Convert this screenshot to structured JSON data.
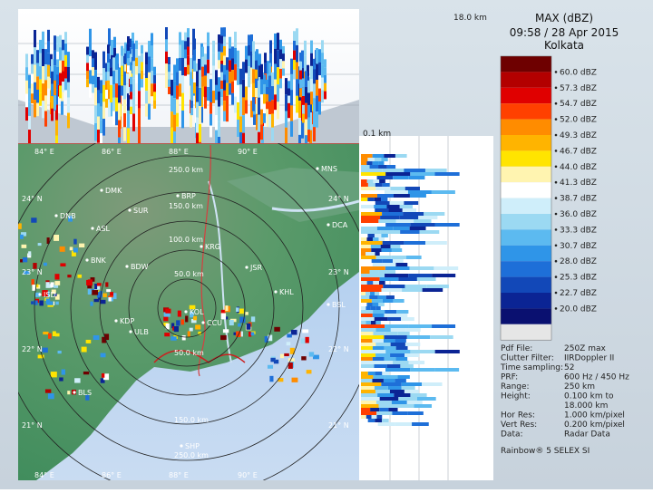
{
  "title": {
    "product": "MAX (dBZ)",
    "datetime": "09:58 / 28 Apr 2015",
    "station": "Kolkata"
  },
  "top_panel": {
    "height_label": "18.0 km"
  },
  "side_panel": {
    "height_label": "0.1 km"
  },
  "legend": {
    "colors": [
      "#6e0000",
      "#b30000",
      "#e00000",
      "#ff4000",
      "#ff8c00",
      "#ffb400",
      "#ffe400",
      "#fff4b0",
      "#ffffff",
      "#cfeefa",
      "#9bd9f2",
      "#5cbaf0",
      "#2f95e8",
      "#1e6fd8",
      "#1248b8",
      "#0b2494",
      "#0a1070",
      "#e6e6e6"
    ],
    "labels": [
      "60.0 dBZ",
      "57.3 dBZ",
      "54.7 dBZ",
      "52.0 dBZ",
      "49.3 dBZ",
      "46.7 dBZ",
      "44.0 dBZ",
      "41.3 dBZ",
      "38.7 dBZ",
      "36.0 dBZ",
      "33.3 dBZ",
      "30.7 dBZ",
      "28.0 dBZ",
      "25.3 dBZ",
      "22.7 dBZ",
      "20.0 dBZ"
    ]
  },
  "metadata": [
    {
      "key": "Pdf File:",
      "value": "250Z max"
    },
    {
      "key": "Clutter Filter:",
      "value": "IIRDoppler II"
    },
    {
      "key": "Time sampling:",
      "value": "52"
    },
    {
      "key": "PRF:",
      "value": "600 Hz / 450 Hz"
    },
    {
      "key": "Range:",
      "value": "250 km"
    },
    {
      "key": "Height:",
      "value": "0.100 km to"
    },
    {
      "key": "",
      "value": "18.000 km"
    },
    {
      "key": "Hor Res:",
      "value": "1.000 km/pixel"
    },
    {
      "key": "Vert Res:",
      "value": "0.200 km/pixel"
    },
    {
      "key": "Data:",
      "value": "Radar Data"
    }
  ],
  "footer": {
    "software": "Rainbow® 5 SELEX SI"
  },
  "map": {
    "range_rings": [
      "250.0 km",
      "150.0 km",
      "100.0 km",
      "50.0 km",
      "50.0 km",
      "150.0 km",
      "250.0 km"
    ],
    "lon_labels_top": [
      "84° E",
      "86° E",
      "88° E",
      "90° E"
    ],
    "lon_labels_bottom": [
      "84° E",
      "86° E",
      "88° E",
      "90° E"
    ],
    "lat_labels_left": [
      "24° N",
      "23° N",
      "22° N",
      "21° N"
    ],
    "lat_labels_right": [
      "24° N",
      "23° N",
      "22° N",
      "21° N"
    ],
    "cities": [
      "MNS",
      "DMK",
      "BRP",
      "DNB",
      "SUR",
      "DCA",
      "ASL",
      "KRG",
      "BNK",
      "BDW",
      "JSR",
      "KOL",
      "KHL",
      "ISD",
      "BSL",
      "KDP",
      "ULB",
      "CCU",
      "BLS",
      "SHP"
    ]
  }
}
